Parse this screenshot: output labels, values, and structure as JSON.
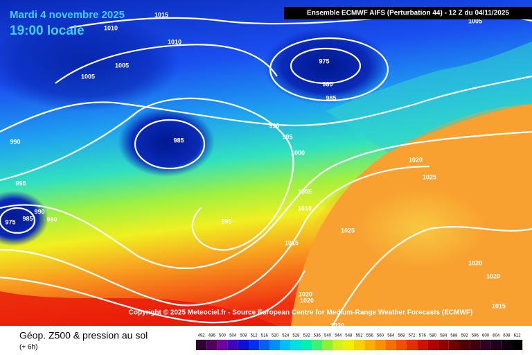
{
  "header": {
    "date": "Mardi 4 novembre 2025",
    "time": "19:00 locale",
    "model": "Ensemble ECMWF AIFS  (Perturbation 44) - 12 Z du 04/11/2025"
  },
  "isobar_labels": [
    "1015",
    "1010",
    "1010",
    "1005",
    "1005",
    "975",
    "980",
    "985",
    "990",
    "990",
    "995",
    "1000",
    "985",
    "995",
    "990",
    "975",
    "985",
    "990",
    "995",
    "1005",
    "1010",
    "1015",
    "1025",
    "1020",
    "1025",
    "1020",
    "1020",
    "1015",
    "1020",
    "1020",
    "1020",
    "1005"
  ],
  "copyright": "Copyright © 2025 Meteociel.fr - Source European Centre for Medium-Range Weather Forecasts (ECMWF)",
  "footer": {
    "title": "Géop. Z500 & pression au sol",
    "step": "(+ 6h)"
  },
  "colorbar": {
    "labels": [
      "492",
      "496",
      "500",
      "504",
      "508",
      "512",
      "516",
      "520",
      "524",
      "528",
      "532",
      "536",
      "540",
      "544",
      "548",
      "552",
      "556",
      "560",
      "564",
      "568",
      "572",
      "576",
      "580",
      "584",
      "588",
      "592",
      "596",
      "600",
      "604",
      "608",
      "612"
    ]
  }
}
